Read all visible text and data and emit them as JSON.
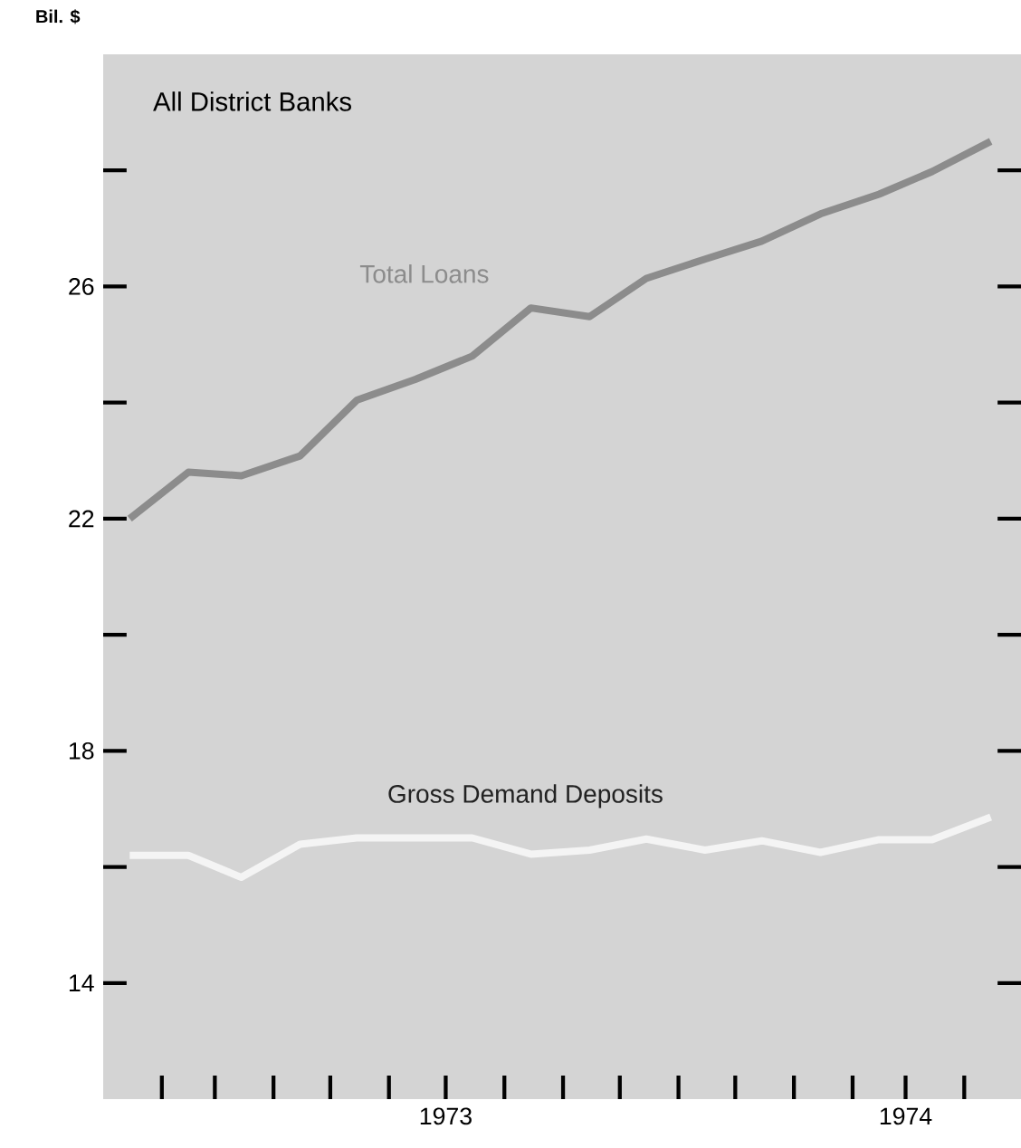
{
  "chart_data": {
    "type": "line",
    "title": "All District Banks",
    "ylabel": "Bil. $",
    "x": [
      "1973-01-15",
      "1973-02-15",
      "1973-03-15",
      "1973-04-15",
      "1973-05-15",
      "1973-06-15",
      "1973-07-15",
      "1973-08-15",
      "1973-09-15",
      "1973-10-15",
      "1973-11-15",
      "1973-12-15",
      "1974-01-15",
      "1974-02-15",
      "1974-03-15",
      "1974-04-15"
    ],
    "xlim": [
      "1973-01-01",
      "1974-05-01"
    ],
    "ylim": [
      12,
      30
    ],
    "xticks": [
      {
        "value": "1973-02-01",
        "label": null
      },
      {
        "value": "1973-03-01",
        "label": null
      },
      {
        "value": "1973-04-01",
        "label": null
      },
      {
        "value": "1973-05-01",
        "label": null
      },
      {
        "value": "1973-06-01",
        "label": null
      },
      {
        "value": "1973-07-01",
        "label": "1973"
      },
      {
        "value": "1973-08-01",
        "label": null
      },
      {
        "value": "1973-09-01",
        "label": null
      },
      {
        "value": "1973-10-01",
        "label": null
      },
      {
        "value": "1973-11-01",
        "label": null
      },
      {
        "value": "1973-12-01",
        "label": null
      },
      {
        "value": "1974-01-01",
        "label": null
      },
      {
        "value": "1974-02-01",
        "label": null
      },
      {
        "value": "1974-03-01",
        "label": "1974"
      },
      {
        "value": "1974-04-01",
        "label": null
      }
    ],
    "yticks": [
      14,
      {
        "value": 16,
        "label": null
      },
      18,
      {
        "value": 20,
        "label": null
      },
      22,
      {
        "value": 24,
        "label": null
      },
      26,
      {
        "value": 28,
        "label": null
      }
    ],
    "series": [
      {
        "name": "Total Loans",
        "color": "#8c8c8c",
        "values": [
          22.0,
          22.8,
          22.74,
          23.08,
          24.04,
          24.4,
          24.8,
          25.63,
          25.48,
          26.14,
          26.47,
          26.78,
          27.25,
          27.59,
          27.98,
          28.5
        ]
      },
      {
        "name": "Gross Demand Deposits",
        "color": "#f4f4f4",
        "values": [
          16.2,
          16.2,
          15.82,
          16.39,
          16.5,
          16.5,
          16.5,
          16.22,
          16.29,
          16.48,
          16.29,
          16.45,
          16.25,
          16.47,
          16.47,
          16.86
        ]
      }
    ]
  }
}
